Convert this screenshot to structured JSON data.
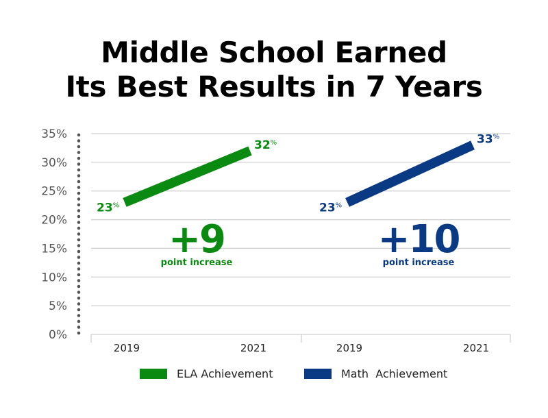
{
  "title_line1": "Middle School Earned",
  "title_line2": "Its Best Results in 7 Years",
  "colors": {
    "ela": "#0a8a10",
    "math": "#0b3a84",
    "grid": "#d0d0d0",
    "axis": "#555555"
  },
  "chart_data": {
    "type": "line",
    "title": "Middle School Earned Its Best Results in 7 Years",
    "ylim": [
      0,
      35
    ],
    "y_ticks": [
      "0%",
      "5%",
      "10%",
      "15%",
      "20%",
      "25%",
      "30%",
      "35%"
    ],
    "grid": true,
    "legend_position": "bottom",
    "panels": [
      {
        "series_name": "ELA Achievement",
        "x": [
          "2019",
          "2021"
        ],
        "values": [
          23,
          32
        ],
        "start_label": "23",
        "end_label": "32",
        "unit": "%",
        "change": "+9",
        "change_note": "point increase",
        "color": "#0a8a10"
      },
      {
        "series_name": "Math Achievement",
        "x": [
          "2019",
          "2021"
        ],
        "values": [
          23,
          33
        ],
        "start_label": "23",
        "end_label": "33",
        "unit": "%",
        "change": "+10",
        "change_note": "point increase",
        "color": "#0b3a84"
      }
    ]
  },
  "legend": [
    {
      "label": "ELA Achievement",
      "color": "#0a8a10"
    },
    {
      "label": "Math  Achievement",
      "color": "#0b3a84"
    }
  ]
}
